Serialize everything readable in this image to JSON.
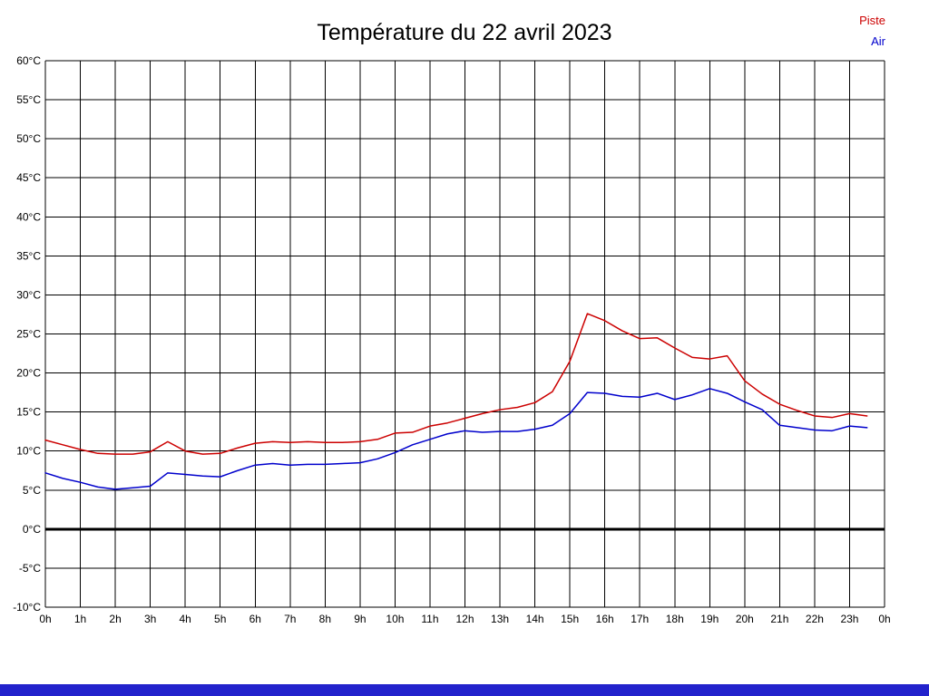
{
  "page": {
    "background": "#ffffff",
    "bottom_bar_color": "#2222cc"
  },
  "chart_data": {
    "type": "line",
    "title": "Température du 22 avril 2023",
    "xlabel": "",
    "ylabel": "",
    "xlim": [
      0,
      24
    ],
    "ylim": [
      -10,
      60
    ],
    "grid": true,
    "grid_color": "#000000",
    "legend_position": "top-right",
    "x_ticks": [
      0,
      1,
      2,
      3,
      4,
      5,
      6,
      7,
      8,
      9,
      10,
      11,
      12,
      13,
      14,
      15,
      16,
      17,
      18,
      19,
      20,
      21,
      22,
      23,
      24
    ],
    "x_tick_labels": [
      "0h",
      "1h",
      "2h",
      "3h",
      "4h",
      "5h",
      "6h",
      "7h",
      "8h",
      "9h",
      "10h",
      "11h",
      "12h",
      "13h",
      "14h",
      "15h",
      "16h",
      "17h",
      "18h",
      "19h",
      "20h",
      "21h",
      "22h",
      "23h",
      "0h"
    ],
    "y_ticks": [
      60,
      55,
      50,
      45,
      40,
      35,
      30,
      25,
      20,
      15,
      10,
      5,
      0,
      -5,
      -10
    ],
    "y_tick_labels": [
      "60°C",
      "55°C",
      "50°C",
      "45°C",
      "40°C",
      "35°C",
      "30°C",
      "25°C",
      "20°C",
      "15°C",
      "10°C",
      "5°C",
      "0°C",
      "-5°C",
      "-10°C"
    ],
    "zero_line": {
      "y": 0,
      "color": "#000000",
      "width": 3
    },
    "x": [
      0,
      0.5,
      1,
      1.5,
      2,
      2.5,
      3,
      3.5,
      4,
      4.5,
      5,
      5.5,
      6,
      6.5,
      7,
      7.5,
      8,
      8.5,
      9,
      9.5,
      10,
      10.5,
      11,
      11.5,
      12,
      12.5,
      13,
      13.5,
      14,
      14.5,
      15,
      15.5,
      16,
      16.5,
      17,
      17.5,
      18,
      18.5,
      19,
      19.5,
      20,
      20.5,
      21,
      21.5,
      22,
      22.5,
      23,
      23.5
    ],
    "series": [
      {
        "name": "Piste",
        "color": "#cc0000",
        "values": [
          11.4,
          10.8,
          10.2,
          9.7,
          9.6,
          9.6,
          9.9,
          11.2,
          10.0,
          9.6,
          9.7,
          10.4,
          11.0,
          11.2,
          11.1,
          11.2,
          11.1,
          11.1,
          11.2,
          11.5,
          12.3,
          12.4,
          13.2,
          13.6,
          14.2,
          14.8,
          15.3,
          15.6,
          16.2,
          17.6,
          21.5,
          27.6,
          26.7,
          25.4,
          24.4,
          24.5,
          23.2,
          22.0,
          21.8,
          22.2,
          19.0,
          17.3,
          16.0,
          15.2,
          14.5,
          14.3,
          14.8,
          14.5
        ]
      },
      {
        "name": "Air",
        "color": "#0000cc",
        "values": [
          7.2,
          6.5,
          6.0,
          5.4,
          5.1,
          5.3,
          5.5,
          7.2,
          7.0,
          6.8,
          6.7,
          7.5,
          8.2,
          8.4,
          8.2,
          8.3,
          8.3,
          8.4,
          8.5,
          9.0,
          9.8,
          10.8,
          11.5,
          12.2,
          12.6,
          12.4,
          12.5,
          12.5,
          12.8,
          13.3,
          14.8,
          17.5,
          17.4,
          17.0,
          16.9,
          17.4,
          16.6,
          17.2,
          18.0,
          17.4,
          16.3,
          15.3,
          13.3,
          13.0,
          12.7,
          12.6,
          13.2,
          13.0
        ]
      }
    ]
  }
}
